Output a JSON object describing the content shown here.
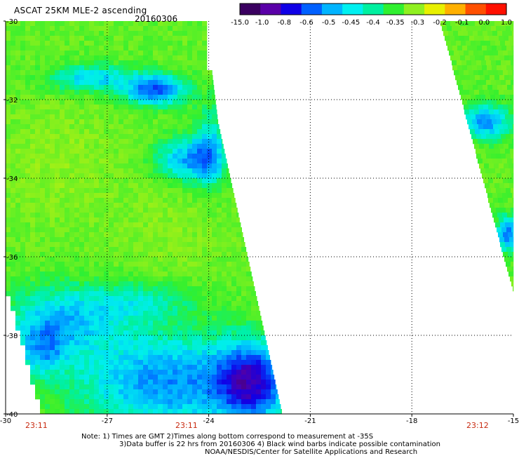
{
  "header": {
    "title": "ASCAT 25KM MLE-2 ascending",
    "date": "20160306"
  },
  "colorbar": {
    "labels": [
      "-15.0",
      "-1.0",
      "-0.8",
      "-0.6",
      "-0.5",
      "-0.45",
      "-0.4",
      "-0.35",
      "-0.3",
      "-0.2",
      "-0.1",
      "0.0",
      "1.0"
    ],
    "colors": [
      "#3a0060",
      "#5a00a8",
      "#1000e6",
      "#0060ff",
      "#00b4ff",
      "#00f0f0",
      "#00f0a0",
      "#30f030",
      "#90f020",
      "#e8f000",
      "#ffb000",
      "#ff5000",
      "#ff1000"
    ]
  },
  "map": {
    "lon_labels": [
      "-30",
      "-27",
      "-24",
      "-21",
      "-18",
      "-15"
    ],
    "lat_labels": [
      "-30",
      "-32",
      "-34",
      "-36",
      "-38",
      "-40"
    ],
    "lon_range": [
      -30,
      -15
    ],
    "lat_range": [
      -30,
      -40
    ],
    "grid": "dotted",
    "swath_times": [
      "23:11",
      "23:11",
      "23:12"
    ],
    "time_label_color": "#c82a10"
  },
  "notes": {
    "line1": "Note: 1) Times are GMT 2)Times along bottom correspond to measurement at -35S",
    "line2": "3)Data buffer is 22 hrs from 20160306 4) Black wind barbs indicate possible contamination",
    "line3": "NOAA/NESDIS/Center for Satellite Applications and Research"
  }
}
